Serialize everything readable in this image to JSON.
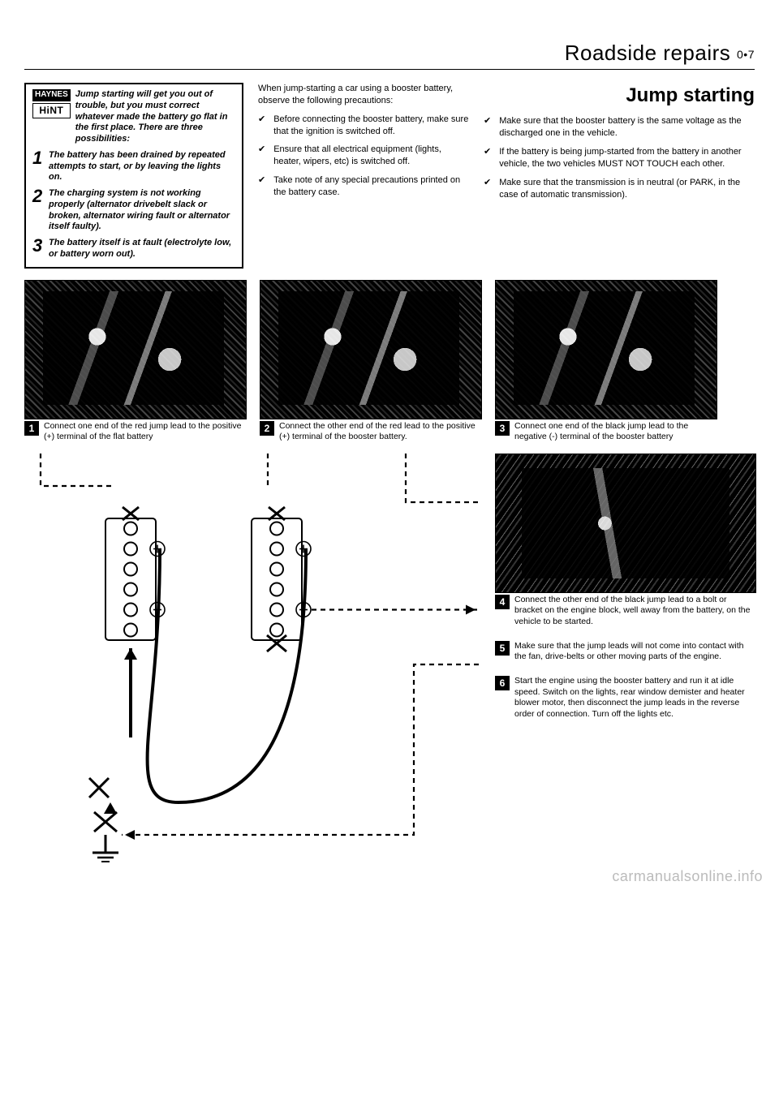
{
  "header": {
    "title": "Roadside repairs",
    "pageref": "0•7"
  },
  "section_title": "Jump starting",
  "hint": {
    "badge_top": "HAYNES",
    "badge_bottom": "HiNT",
    "intro": "Jump starting will get you out of trouble, but you must correct whatever made the battery go flat in the first place. There are three possibilities:",
    "items": [
      {
        "n": "1",
        "text": "The battery has been drained by repeated attempts to start, or by leaving the lights on."
      },
      {
        "n": "2",
        "text": "The charging system is not working properly (alternator drivebelt slack or broken, alternator wiring fault or alternator itself faulty)."
      },
      {
        "n": "3",
        "text": "The battery itself is at fault (electrolyte low, or battery worn out)."
      }
    ]
  },
  "precautions": {
    "intro": "When jump-starting a car using a booster battery, observe the following precautions:",
    "left": [
      "Before connecting the booster battery, make sure that the ignition is switched off.",
      "Ensure that all electrical equipment (lights, heater, wipers, etc) is switched off.",
      "Take note of any special precautions printed on the battery case."
    ],
    "right": [
      "Make sure that the booster battery is the same voltage as the discharged one in the vehicle.",
      "If the battery is being jump-started from the battery in another vehicle, the two vehicles MUST NOT TOUCH each other.",
      "Make sure that the transmission is in neutral (or PARK, in the case of automatic transmission)."
    ]
  },
  "photos": [
    {
      "n": "1",
      "caption": "Connect one end of the red jump lead to the positive (+) terminal of the flat battery"
    },
    {
      "n": "2",
      "caption": "Connect the other end of the red lead to the positive (+) terminal of the booster battery."
    },
    {
      "n": "3",
      "caption": "Connect one end of the black jump lead to the negative (-) terminal of the booster battery"
    }
  ],
  "steps": [
    {
      "n": "4",
      "text": "Connect the other end of the black jump lead to a bolt or bracket on the engine block, well away from the battery, on the vehicle to be started."
    },
    {
      "n": "5",
      "text": "Make sure that the jump leads will not come into contact with the fan, drive-belts or other moving parts of the engine."
    },
    {
      "n": "6",
      "text": "Start the engine using the booster battery and run it at idle speed. Switch on the lights, rear window demister and heater blower motor, then disconnect the jump leads in the reverse order of connection. Turn off the lights etc."
    }
  ],
  "diagram": {
    "battery_cells": 6,
    "plus_cell_index": 1,
    "minus_cell_index": 4,
    "colors": {
      "solid": "#000000",
      "dash": "#000000"
    },
    "dash_pattern": "6,5",
    "line_width_solid": 4,
    "line_width_dash": 2.2
  },
  "watermark": "carmanualsonline.info"
}
